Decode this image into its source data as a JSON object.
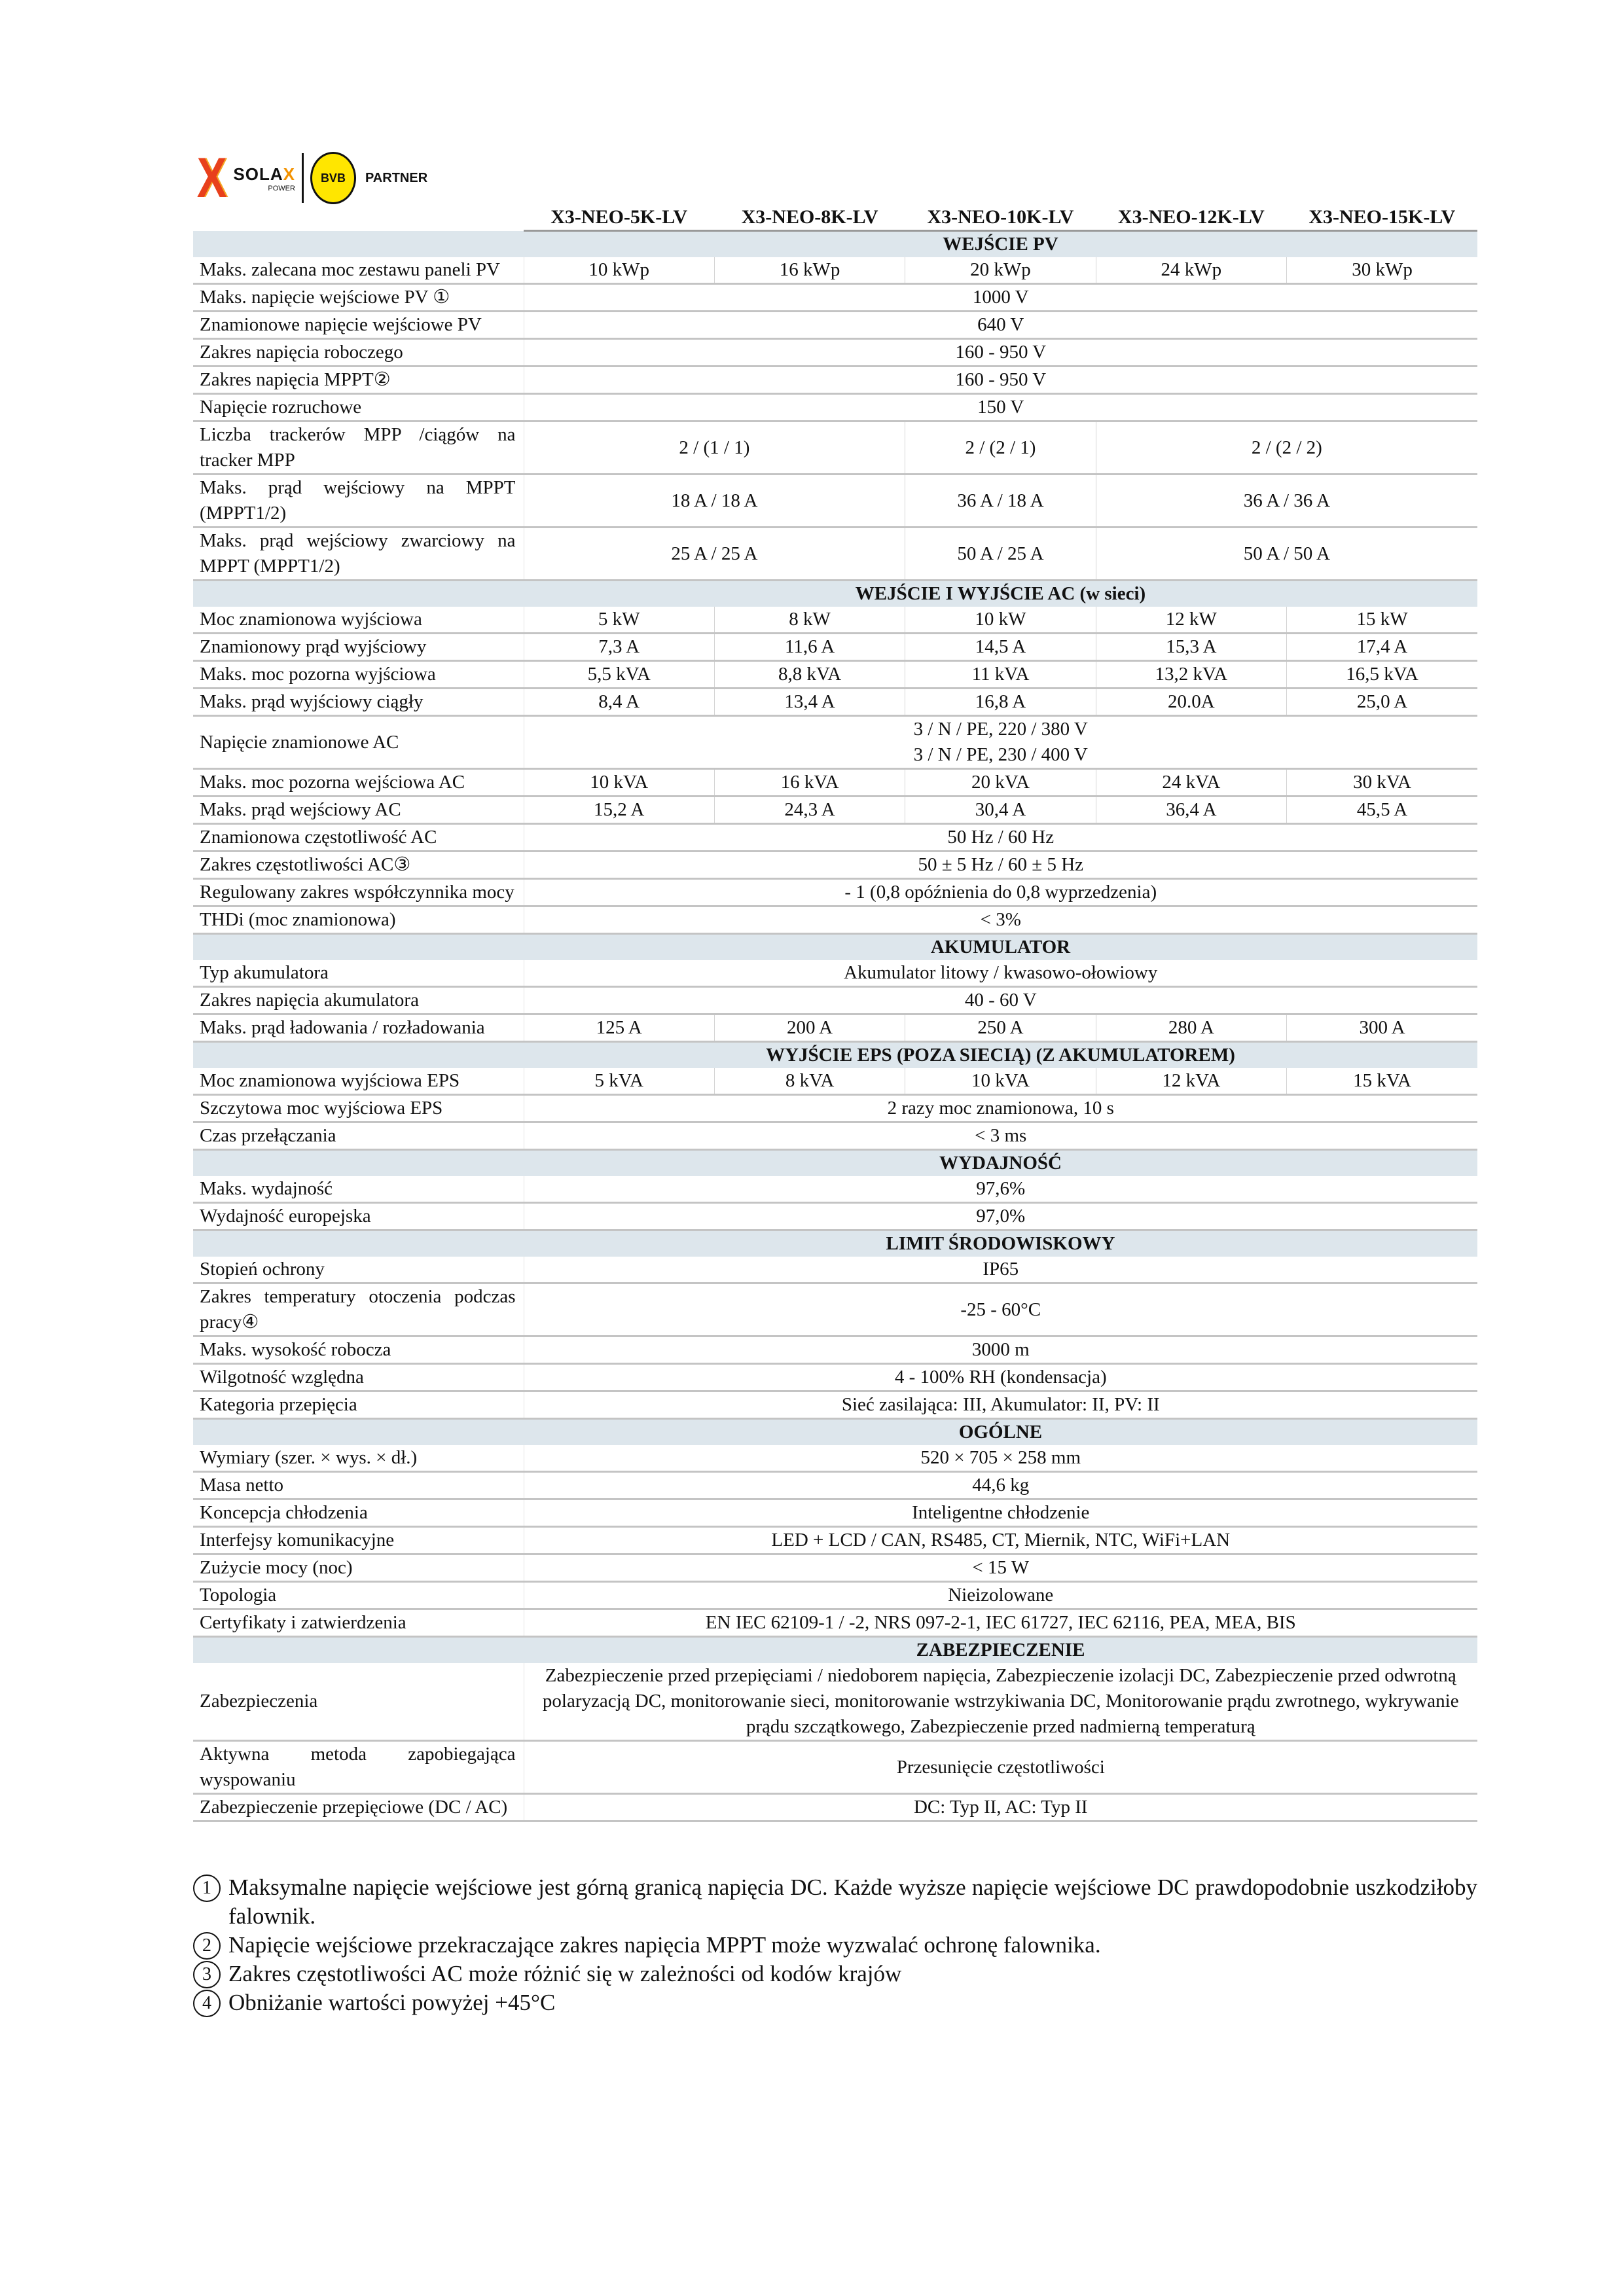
{
  "logo": {
    "brand": "SOLAX",
    "brand_sub": "POWER",
    "partner_logo": "BVB 09",
    "partner": "PARTNER",
    "colors": {
      "orange": "#f39200",
      "red": "#e8401c",
      "yellow": "#ffe600"
    }
  },
  "models": [
    "X3-NEO-5K-LV",
    "X3-NEO-8K-LV",
    "X3-NEO-10K-LV",
    "X3-NEO-12K-LV",
    "X3-NEO-15K-LV"
  ],
  "section_color": "#dde6ec",
  "sections": [
    {
      "title": "WEJŚCIE PV",
      "rows": [
        {
          "label": "Maks. zalecana moc zestawu paneli PV",
          "cells": [
            {
              "value": "10 kWp"
            },
            {
              "value": "16 kWp"
            },
            {
              "value": "20 kWp"
            },
            {
              "value": "24 kWp"
            },
            {
              "value": "30 kWp"
            }
          ]
        },
        {
          "label": "Maks. napięcie wejściowe PV ①",
          "cells": [
            {
              "value": "1000 V",
              "span": 5
            }
          ]
        },
        {
          "label": "Znamionowe napięcie wejściowe PV",
          "cells": [
            {
              "value": "640 V",
              "span": 5
            }
          ]
        },
        {
          "label": "Zakres napięcia roboczego",
          "cells": [
            {
              "value": "160 - 950 V",
              "span": 5
            }
          ]
        },
        {
          "label": "Zakres napięcia MPPT②",
          "cells": [
            {
              "value": "160 - 950 V",
              "span": 5
            }
          ]
        },
        {
          "label": "Napięcie rozruchowe",
          "cells": [
            {
              "value": "150 V",
              "span": 5
            }
          ]
        },
        {
          "label": "Liczba trackerów MPP /ciągów na tracker MPP",
          "cells": [
            {
              "value": "2 / (1 / 1)",
              "span": 2
            },
            {
              "value": "2 / (2 / 1)"
            },
            {
              "value": "2 / (2 / 2)",
              "span": 2
            }
          ]
        },
        {
          "label": "Maks. prąd wejściowy na MPPT (MPPT1/2)",
          "cells": [
            {
              "value": "18 A / 18 A",
              "span": 2
            },
            {
              "value": "36 A / 18 A"
            },
            {
              "value": "36 A / 36 A",
              "span": 2
            }
          ]
        },
        {
          "label": "Maks. prąd wejściowy zwarciowy na MPPT (MPPT1/2)",
          "cells": [
            {
              "value": "25 A / 25 A",
              "span": 2
            },
            {
              "value": "50 A / 25 A"
            },
            {
              "value": "50 A / 50 A",
              "span": 2
            }
          ]
        }
      ]
    },
    {
      "title": "WEJŚCIE I WYJŚCIE AC (w sieci)",
      "rows": [
        {
          "label": "Moc znamionowa wyjściowa",
          "cells": [
            {
              "value": "5 kW"
            },
            {
              "value": "8 kW"
            },
            {
              "value": "10 kW"
            },
            {
              "value": "12 kW"
            },
            {
              "value": "15 kW"
            }
          ]
        },
        {
          "label": "Znamionowy prąd wyjściowy",
          "cells": [
            {
              "value": "7,3 A"
            },
            {
              "value": "11,6 A"
            },
            {
              "value": "14,5 A"
            },
            {
              "value": "15,3 A"
            },
            {
              "value": "17,4 A"
            }
          ]
        },
        {
          "label": "Maks. moc pozorna wyjściowa",
          "cells": [
            {
              "value": "5,5 kVA"
            },
            {
              "value": "8,8 kVA"
            },
            {
              "value": "11 kVA"
            },
            {
              "value": "13,2 kVA"
            },
            {
              "value": "16,5 kVA"
            }
          ]
        },
        {
          "label": "Maks. prąd wyjściowy ciągły",
          "cells": [
            {
              "value": "8,4 A"
            },
            {
              "value": "13,4 A"
            },
            {
              "value": "16,8 A"
            },
            {
              "value": "20.0A"
            },
            {
              "value": "25,0 A"
            }
          ]
        },
        {
          "label": "Napięcie znamionowe AC",
          "cells": [
            {
              "value": "3 / N / PE, 220 / 380 V\n3 / N / PE, 230 / 400 V",
              "span": 5
            }
          ]
        },
        {
          "label": "Maks. moc pozorna wejściowa AC",
          "cells": [
            {
              "value": "10 kVA"
            },
            {
              "value": "16 kVA"
            },
            {
              "value": "20 kVA"
            },
            {
              "value": "24 kVA"
            },
            {
              "value": "30 kVA"
            }
          ]
        },
        {
          "label": "Maks. prąd wejściowy AC",
          "cells": [
            {
              "value": "15,2 A"
            },
            {
              "value": "24,3 A"
            },
            {
              "value": "30,4 A"
            },
            {
              "value": "36,4 A"
            },
            {
              "value": "45,5 A"
            }
          ]
        },
        {
          "label": "Znamionowa częstotliwość AC",
          "cells": [
            {
              "value": "50 Hz / 60 Hz",
              "span": 5
            }
          ]
        },
        {
          "label": "Zakres częstotliwości AC③",
          "cells": [
            {
              "value": "50 ± 5 Hz / 60 ± 5 Hz",
              "span": 5
            }
          ]
        },
        {
          "label": "Regulowany zakres współczynnika mocy",
          "cells": [
            {
              "value": "- 1 (0,8 opóźnienia do 0,8 wyprzedzenia)",
              "span": 5
            }
          ]
        },
        {
          "label": "THDi (moc znamionowa)",
          "cells": [
            {
              "value": "< 3%",
              "span": 5
            }
          ]
        }
      ]
    },
    {
      "title": "AKUMULATOR",
      "rows": [
        {
          "label": "Typ akumulatora",
          "cells": [
            {
              "value": "Akumulator litowy / kwasowo-ołowiowy",
              "span": 5
            }
          ]
        },
        {
          "label": "Zakres napięcia akumulatora",
          "cells": [
            {
              "value": "40 - 60 V",
              "span": 5
            }
          ]
        },
        {
          "label": "Maks. prąd ładowania / rozładowania",
          "cells": [
            {
              "value": "125 A"
            },
            {
              "value": "200 A"
            },
            {
              "value": "250 A"
            },
            {
              "value": "280 A"
            },
            {
              "value": "300 A"
            }
          ]
        }
      ]
    },
    {
      "title": "WYJŚCIE EPS (POZA SIECIĄ) (Z AKUMULATOREM)",
      "rows": [
        {
          "label": "Moc znamionowa wyjściowa EPS",
          "cells": [
            {
              "value": "5 kVA"
            },
            {
              "value": "8 kVA"
            },
            {
              "value": "10 kVA"
            },
            {
              "value": "12 kVA"
            },
            {
              "value": "15 kVA"
            }
          ]
        },
        {
          "label": "Szczytowa moc wyjściowa EPS",
          "cells": [
            {
              "value": "2 razy moc znamionowa, 10 s",
              "span": 5
            }
          ]
        },
        {
          "label": "Czas przełączania",
          "cells": [
            {
              "value": "< 3 ms",
              "span": 5
            }
          ]
        }
      ]
    },
    {
      "title": "WYDAJNOŚĆ",
      "rows": [
        {
          "label": "Maks. wydajność",
          "cells": [
            {
              "value": "97,6%",
              "span": 5
            }
          ]
        },
        {
          "label": "Wydajność europejska",
          "cells": [
            {
              "value": "97,0%",
              "span": 5
            }
          ]
        }
      ]
    },
    {
      "title": "LIMIT ŚRODOWISKOWY",
      "rows": [
        {
          "label": "Stopień ochrony",
          "cells": [
            {
              "value": "IP65",
              "span": 5
            }
          ]
        },
        {
          "label": "Zakres temperatury otoczenia podczas pracy④",
          "cells": [
            {
              "value": "-25 - 60°C",
              "span": 5
            }
          ]
        },
        {
          "label": "Maks. wysokość robocza",
          "cells": [
            {
              "value": "3000 m",
              "span": 5
            }
          ]
        },
        {
          "label": "Wilgotność względna",
          "cells": [
            {
              "value": "4 - 100% RH (kondensacja)",
              "span": 5
            }
          ]
        },
        {
          "label": "Kategoria przepięcia",
          "cells": [
            {
              "value": "Sieć zasilająca: III, Akumulator: II, PV: II",
              "span": 5
            }
          ]
        }
      ]
    },
    {
      "title": "OGÓLNE",
      "rows": [
        {
          "label": "Wymiary (szer. × wys. × dł.)",
          "cells": [
            {
              "value": "520 × 705 × 258 mm",
              "span": 5
            }
          ]
        },
        {
          "label": "Masa netto",
          "cells": [
            {
              "value": "44,6 kg",
              "span": 5
            }
          ]
        },
        {
          "label": "Koncepcja chłodzenia",
          "cells": [
            {
              "value": "Inteligentne chłodzenie",
              "span": 5
            }
          ]
        },
        {
          "label": "Interfejsy komunikacyjne",
          "cells": [
            {
              "value": "LED + LCD / CAN, RS485, CT, Miernik, NTC, WiFi+LAN",
              "span": 5
            }
          ]
        },
        {
          "label": "Zużycie mocy (noc)",
          "cells": [
            {
              "value": "< 15 W",
              "span": 5
            }
          ]
        },
        {
          "label": "Topologia",
          "cells": [
            {
              "value": "Nieizolowane",
              "span": 5
            }
          ]
        },
        {
          "label": "Certyfikaty i zatwierdzenia",
          "cells": [
            {
              "value": "EN IEC 62109-1 / -2, NRS 097-2-1, IEC 61727, IEC 62116, PEA, MEA, BIS",
              "span": 5
            }
          ]
        }
      ]
    },
    {
      "title": "ZABEZPIECZENIE",
      "rows": [
        {
          "label": "Zabezpieczenia",
          "cells": [
            {
              "value": "Zabezpieczenie przed przepięciami / niedoborem napięcia, Zabezpieczenie izolacji DC, Zabezpieczenie przed odwrotną polaryzacją DC, monitorowanie sieci, monitorowanie wstrzykiwania DC, Monitorowanie prądu zwrotnego, wykrywanie prądu szczątkowego, Zabezpieczenie przed nadmierną temperaturą",
              "span": 5
            }
          ]
        },
        {
          "label": "Aktywna metoda zapobiegająca wyspowaniu",
          "cells": [
            {
              "value": "Przesunięcie częstotliwości",
              "span": 5
            }
          ]
        },
        {
          "label": "Zabezpieczenie przepięciowe (DC / AC)",
          "cells": [
            {
              "value": "DC: Typ II, AC: Typ II",
              "span": 5
            }
          ]
        }
      ]
    }
  ],
  "notes": [
    {
      "num": "1",
      "text": "Maksymalne napięcie wejściowe jest górną granicą napięcia DC. Każde wyższe napięcie wejściowe DC prawdopodobnie uszkodziłoby falownik."
    },
    {
      "num": "2",
      "text": "Napięcie wejściowe przekraczające zakres napięcia MPPT może wyzwalać ochronę falownika."
    },
    {
      "num": "3",
      "text": "Zakres częstotliwości AC może różnić się w zależności od kodów krajów"
    },
    {
      "num": "4",
      "text": "Obniżanie wartości powyżej +45°C"
    }
  ]
}
